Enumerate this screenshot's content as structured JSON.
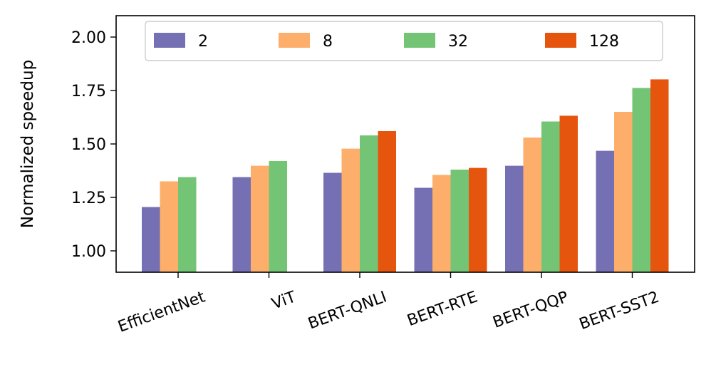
{
  "chart_data": {
    "type": "bar",
    "ylabel": "Normalized speedup",
    "ylim": [
      0.9,
      2.1
    ],
    "yticks": [
      1.0,
      1.25,
      1.5,
      1.75,
      2.0
    ],
    "ytick_labels": [
      "1.00",
      "1.25",
      "1.50",
      "1.75",
      "2.00"
    ],
    "categories": [
      "EfficientNet",
      "ViT",
      "BERT-QNLI",
      "BERT-RTE",
      "BERT-QQP",
      "BERT-SST2"
    ],
    "legend_position": "top",
    "grid": false,
    "series": [
      {
        "name": "2",
        "color": "#7570b3",
        "values": [
          1.205,
          1.345,
          1.365,
          1.295,
          1.398,
          1.468
        ]
      },
      {
        "name": "8",
        "color": "#fdae6b",
        "values": [
          1.325,
          1.398,
          1.478,
          1.355,
          1.53,
          1.65
        ]
      },
      {
        "name": "32",
        "color": "#74c476",
        "values": [
          1.345,
          1.42,
          1.54,
          1.38,
          1.605,
          1.762
        ]
      },
      {
        "name": "128",
        "color": "#e6550d",
        "values": [
          null,
          null,
          1.56,
          1.388,
          1.632,
          1.802
        ]
      }
    ]
  }
}
